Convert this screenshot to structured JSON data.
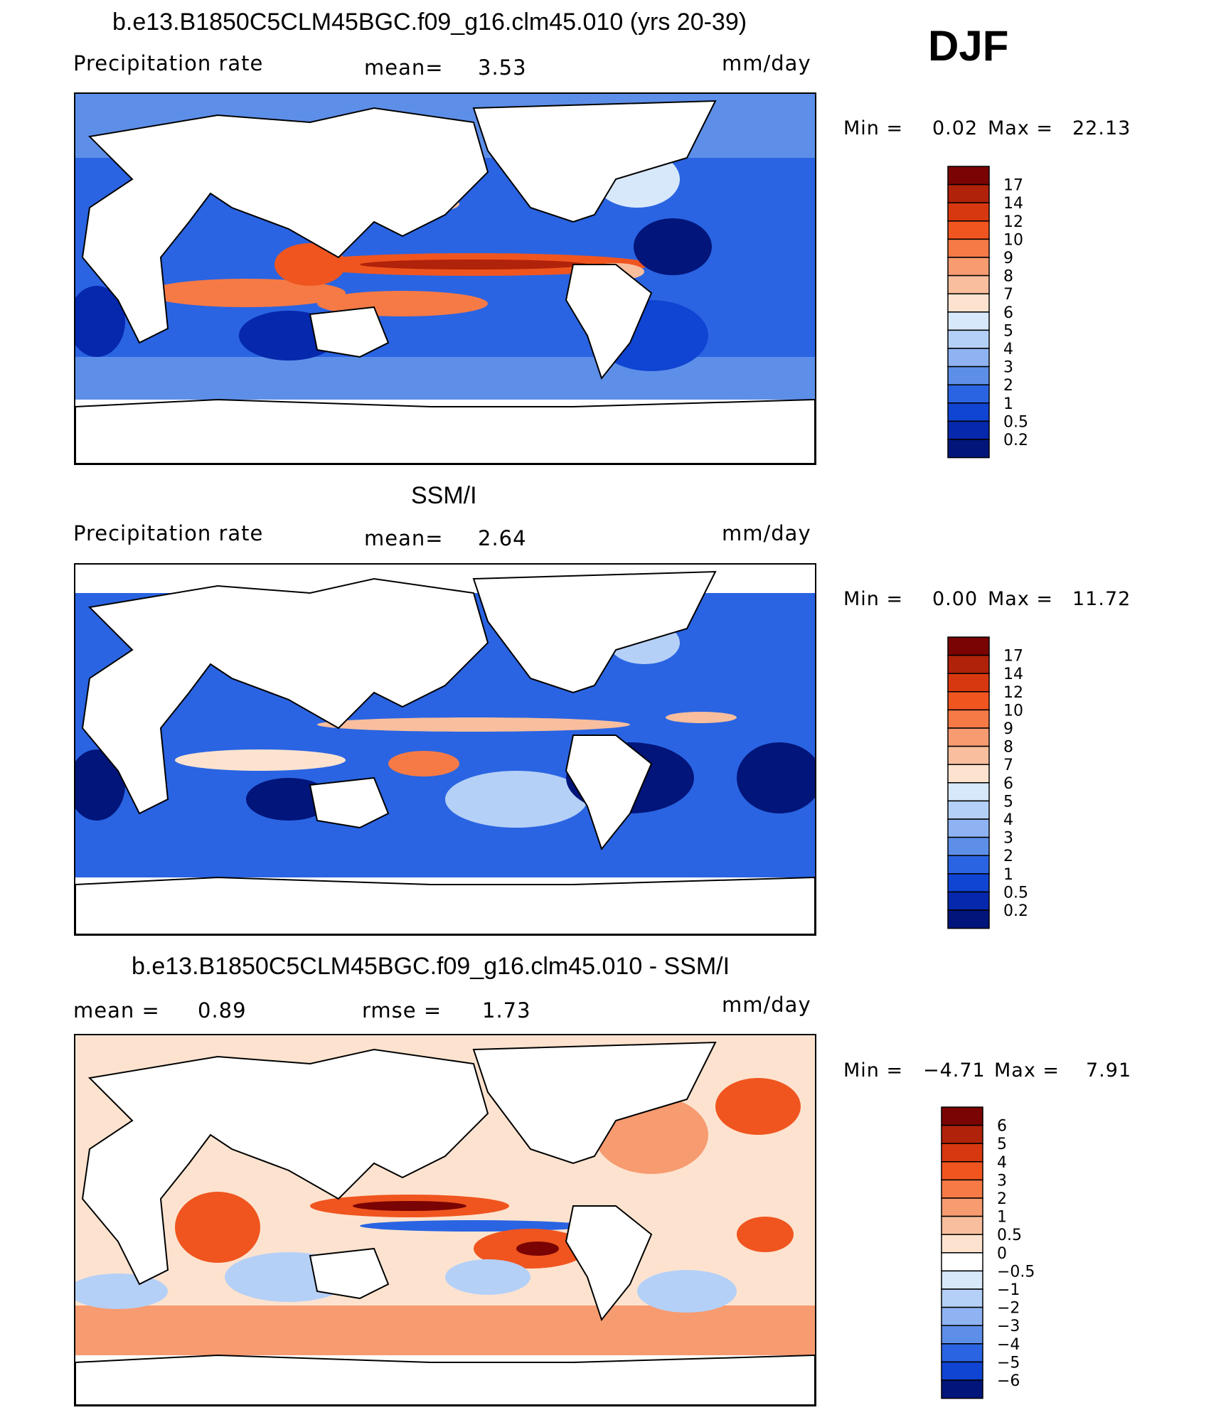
{
  "season": "DJF",
  "panels": [
    {
      "id": "model",
      "title": "b.e13.B1850C5CLM45BGC.f09_g16.clm45.010 (yrs 20-39)",
      "left_label": "Precipitation  rate",
      "center_label": "mean=",
      "center_value": "3.53",
      "units": "mm/day",
      "min_label": "Min  =",
      "min_value": "0.02",
      "max_label": "Max  =",
      "max_value": "22.13"
    },
    {
      "id": "obs",
      "title": "SSM/I",
      "left_label": "Precipitation  rate",
      "center_label": "mean=",
      "center_value": "2.64",
      "units": "mm/day",
      "min_label": "Min  =",
      "min_value": "0.00",
      "max_label": "Max  =",
      "max_value": "11.72"
    },
    {
      "id": "diff",
      "title": "b.e13.B1850C5CLM45BGC.f09_g16.clm45.010 - SSM/I",
      "left_label": "mean  =",
      "left_value": "0.89",
      "center_label": "rmse  =",
      "center_value": "1.73",
      "units": "mm/day",
      "min_label": "Min  =",
      "min_value": "−4.71",
      "max_label": "Max  =",
      "max_value": "7.91"
    }
  ],
  "colorbars": {
    "precip": {
      "levels": [
        "17",
        "14",
        "12",
        "10",
        "9",
        "8",
        "7",
        "6",
        "5",
        "4",
        "3",
        "2",
        "1",
        "0.5",
        "0.2"
      ],
      "colors": [
        "#7a0403",
        "#b0220a",
        "#d8380f",
        "#f0551f",
        "#f67a45",
        "#f79b70",
        "#f8be9d",
        "#fde3cf",
        "#d7e8fb",
        "#b5d0f7",
        "#8fb3f2",
        "#5d8fe9",
        "#2a64e2",
        "#1044d2",
        "#0528ad",
        "#02157a"
      ]
    },
    "diff": {
      "levels": [
        "6",
        "5",
        "4",
        "3",
        "2",
        "1",
        "0.5",
        "0",
        "−0.5",
        "−1",
        "−2",
        "−3",
        "−4",
        "−5",
        "−6"
      ],
      "colors": [
        "#7a0403",
        "#b0220a",
        "#d8380f",
        "#f0551f",
        "#f67a45",
        "#f79b70",
        "#f8be9d",
        "#fde3cf",
        "#ffffff",
        "#d7e8fb",
        "#b5d0f7",
        "#8fb3f2",
        "#5d8fe9",
        "#2a64e2",
        "#1044d2",
        "#02157a"
      ]
    }
  }
}
